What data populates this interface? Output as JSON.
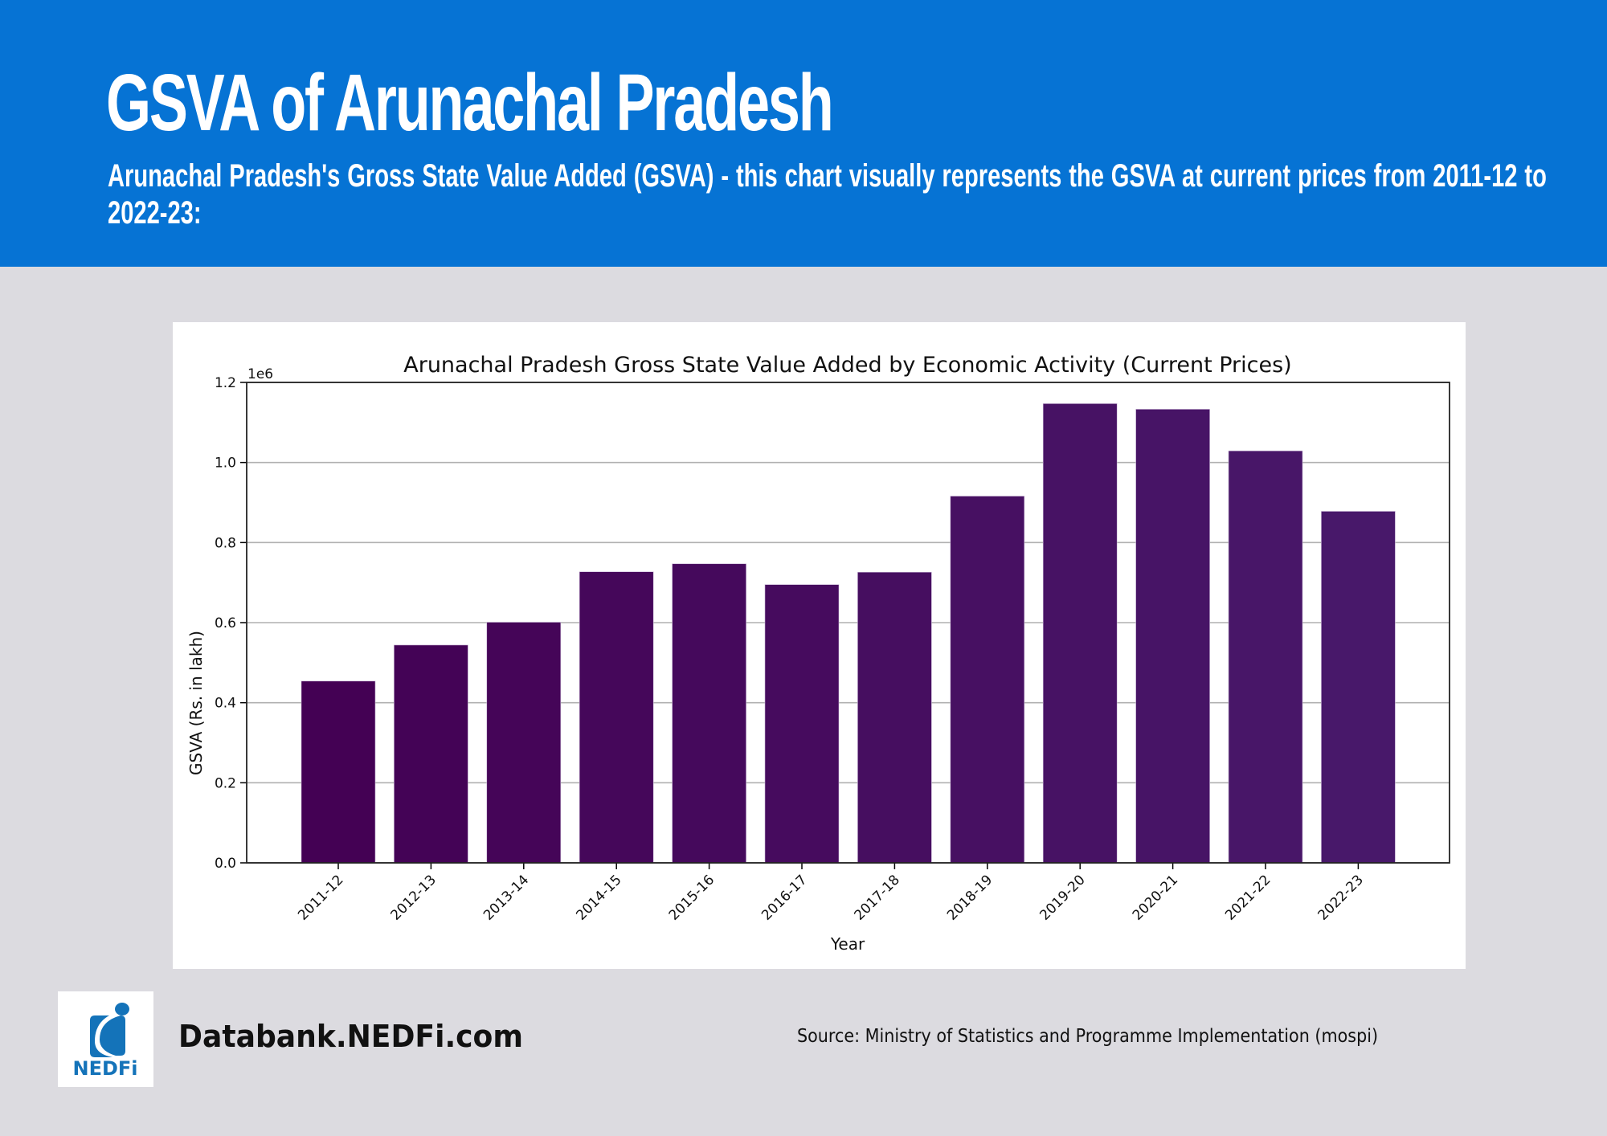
{
  "header": {
    "title": "GSVA of Arunachal Pradesh",
    "subtitle": "Arunachal Pradesh's Gross State Value Added (GSVA) - this chart visually represents the GSVA at current prices from 2011-12 to 2022-23:"
  },
  "footer": {
    "logo_text": "NEDFi",
    "site": "Databank.NEDFi.com",
    "source": "Source: Ministry of Statistics and Programme Implementation (mospi)"
  },
  "colors": {
    "header_bg": "#0673D4",
    "page_bg": "#DCDBE0",
    "bar_start": "#440154",
    "bar_end": "#48186A",
    "logo_blue": "#1473B9"
  },
  "chart_data": {
    "type": "bar",
    "title": "Arunachal Pradesh Gross State Value Added by Economic Activity (Current Prices)",
    "xlabel": "Year",
    "ylabel": "GSVA (Rs. in lakh)",
    "offset_label": "1e6",
    "ylim": [
      0,
      1.2
    ],
    "y_scale": 1000000,
    "yticks": [
      "0.0",
      "0.2",
      "0.4",
      "0.6",
      "0.8",
      "1.0",
      "1.2"
    ],
    "grid": "y",
    "categories": [
      "2011-12",
      "2012-13",
      "2013-14",
      "2014-15",
      "2015-16",
      "2016-17",
      "2017-18",
      "2018-19",
      "2019-20",
      "2020-21",
      "2021-22",
      "2022-23"
    ],
    "values": [
      454000,
      544000,
      601000,
      727000,
      747000,
      695000,
      726000,
      916000,
      1147000,
      1133000,
      1029000,
      878000
    ]
  }
}
